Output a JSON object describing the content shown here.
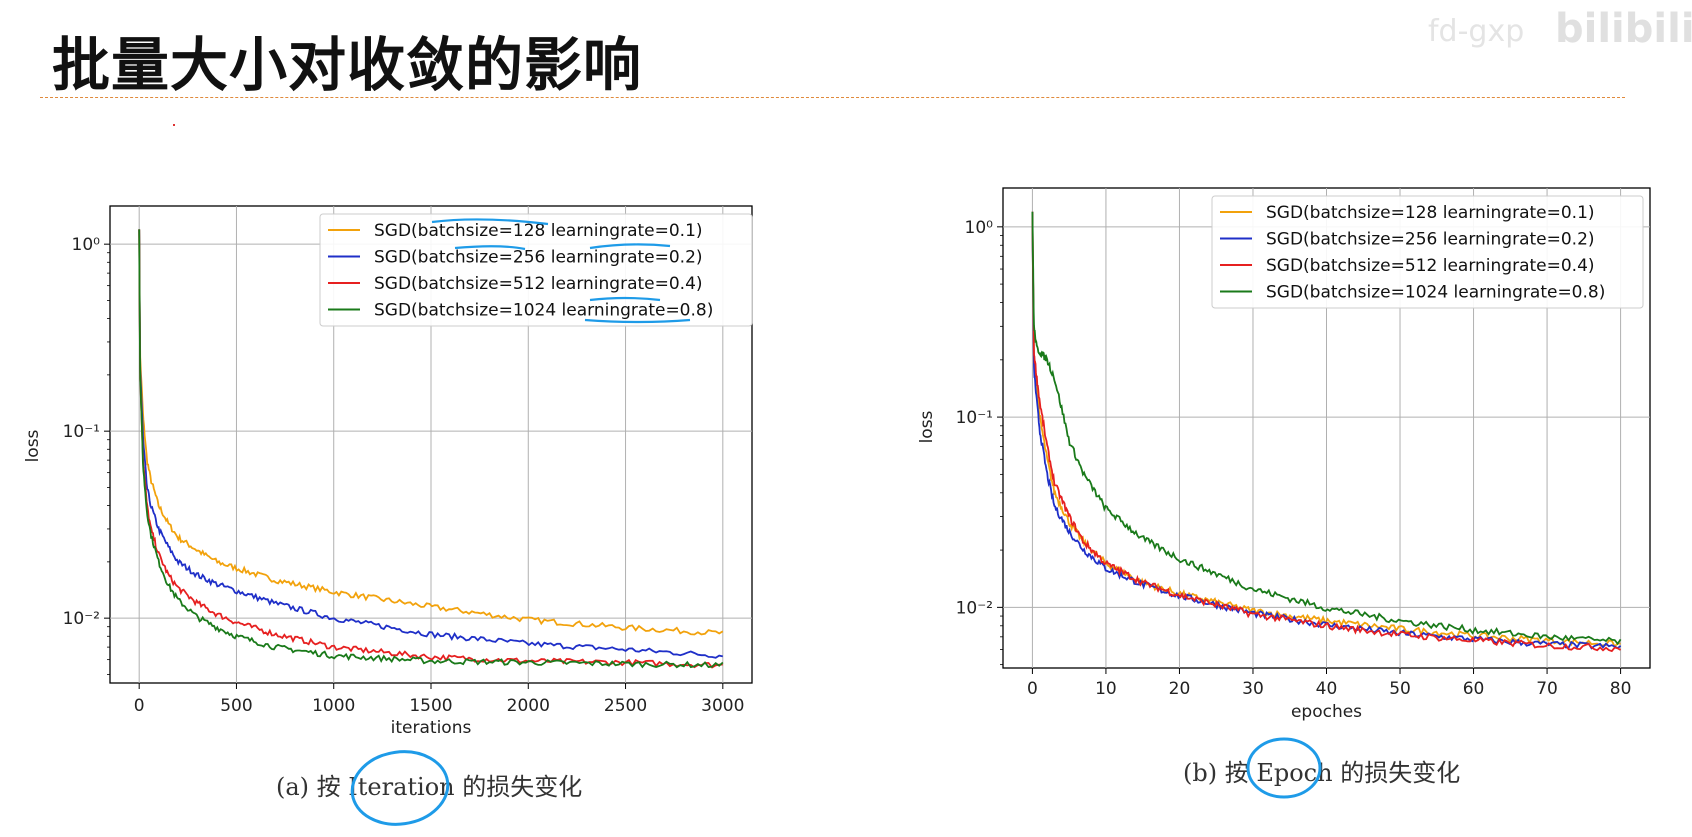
{
  "page": {
    "title": "批量大小对收敛的影响",
    "watermark": "fd-gxp",
    "watermark2": "bilibili"
  },
  "captions": {
    "a": "(a) 按 Iteration 的损失变化",
    "b": "(b) 按 Epoch 的损失变化"
  },
  "colors": {
    "accent_divider": "#e08a3c",
    "orange": "#f2a20c",
    "blue": "#1f2fc8",
    "red": "#e62020",
    "green": "#1a7a1a",
    "annotation": "#1e9be8"
  },
  "chart_data": [
    {
      "type": "line",
      "xlabel": "iterations",
      "ylabel": "loss",
      "yscale": "log",
      "xlim": [
        -150,
        3150
      ],
      "ylim": [
        0.0045,
        1.6
      ],
      "xticks": [
        0,
        500,
        1000,
        1500,
        2000,
        2500,
        3000
      ],
      "ytick_labels": [
        "10⁰",
        "10⁻¹",
        "10⁻²"
      ],
      "grid": true,
      "legend_position": "top-right",
      "series": [
        {
          "name": "SGD(batchsize=128 learningrate=0.1)",
          "color": "#f2a20c",
          "x": [
            0,
            5,
            20,
            40,
            60,
            100,
            150,
            200,
            300,
            400,
            500,
            700,
            1000,
            1500,
            2000,
            2500,
            3000
          ],
          "y": [
            1.2,
            0.25,
            0.12,
            0.07,
            0.055,
            0.04,
            0.032,
            0.027,
            0.023,
            0.02,
            0.0185,
            0.016,
            0.0138,
            0.0115,
            0.0098,
            0.0089,
            0.0083
          ]
        },
        {
          "name": "SGD(batchsize=256 learningrate=0.2)",
          "color": "#1f2fc8",
          "x": [
            0,
            5,
            20,
            40,
            60,
            100,
            150,
            200,
            300,
            400,
            500,
            700,
            1000,
            1500,
            2000,
            2500,
            3000
          ],
          "y": [
            1.2,
            0.22,
            0.09,
            0.05,
            0.04,
            0.03,
            0.024,
            0.02,
            0.017,
            0.0152,
            0.014,
            0.012,
            0.01,
            0.0082,
            0.0073,
            0.0068,
            0.0063
          ]
        },
        {
          "name": "SGD(batchsize=512 learningrate=0.4)",
          "color": "#e62020",
          "x": [
            0,
            5,
            20,
            40,
            60,
            100,
            150,
            200,
            300,
            400,
            500,
            700,
            1000,
            1500,
            2000,
            2500,
            3000
          ],
          "y": [
            1.2,
            0.2,
            0.07,
            0.04,
            0.03,
            0.022,
            0.017,
            0.0145,
            0.012,
            0.0105,
            0.0095,
            0.0082,
            0.007,
            0.0062,
            0.0059,
            0.0058,
            0.0056
          ]
        },
        {
          "name": "SGD(batchsize=1024 learningrate=0.8)",
          "color": "#1a7a1a",
          "x": [
            0,
            5,
            20,
            40,
            60,
            100,
            150,
            200,
            300,
            400,
            500,
            700,
            1000,
            1500,
            2000,
            2500,
            3000
          ],
          "y": [
            1.2,
            0.2,
            0.065,
            0.037,
            0.028,
            0.02,
            0.015,
            0.0125,
            0.0101,
            0.0089,
            0.008,
            0.007,
            0.0063,
            0.0059,
            0.0058,
            0.0057,
            0.0056
          ]
        }
      ]
    },
    {
      "type": "line",
      "xlabel": "epoches",
      "ylabel": "loss",
      "yscale": "log",
      "xlim": [
        -4,
        84
      ],
      "ylim": [
        0.0048,
        1.6
      ],
      "xticks": [
        0,
        10,
        20,
        30,
        40,
        50,
        60,
        70,
        80
      ],
      "ytick_labels": [
        "10⁰",
        "10⁻¹",
        "10⁻²"
      ],
      "grid": true,
      "legend_position": "top-right",
      "series": [
        {
          "name": "SGD(batchsize=128 learningrate=0.1)",
          "color": "#f2a20c",
          "x": [
            0,
            0.2,
            0.6,
            1,
            2,
            3,
            5,
            7,
            10,
            15,
            20,
            30,
            40,
            50,
            60,
            70,
            80
          ],
          "y": [
            1.2,
            0.2,
            0.14,
            0.1,
            0.06,
            0.04,
            0.028,
            0.022,
            0.017,
            0.0135,
            0.0118,
            0.0096,
            0.0085,
            0.0077,
            0.0071,
            0.0067,
            0.0064
          ]
        },
        {
          "name": "SGD(batchsize=256 learningrate=0.2)",
          "color": "#1f2fc8",
          "x": [
            0,
            0.2,
            0.6,
            1,
            2,
            3,
            5,
            7,
            10,
            15,
            20,
            30,
            40,
            50,
            60,
            70,
            80
          ],
          "y": [
            1.2,
            0.18,
            0.12,
            0.085,
            0.05,
            0.034,
            0.025,
            0.02,
            0.016,
            0.0132,
            0.0115,
            0.0093,
            0.0081,
            0.0073,
            0.0068,
            0.0064,
            0.0062
          ]
        },
        {
          "name": "SGD(batchsize=512 learningrate=0.4)",
          "color": "#e62020",
          "x": [
            0,
            0.2,
            0.6,
            1,
            2,
            3,
            5,
            7,
            10,
            15,
            20,
            30,
            40,
            50,
            60,
            70,
            80
          ],
          "y": [
            1.2,
            0.22,
            0.16,
            0.12,
            0.07,
            0.045,
            0.03,
            0.022,
            0.017,
            0.0135,
            0.0116,
            0.0092,
            0.008,
            0.0072,
            0.0067,
            0.0063,
            0.0061
          ]
        },
        {
          "name": "SGD(batchsize=1024 learningrate=0.8)",
          "color": "#1a7a1a",
          "x": [
            0,
            0.2,
            0.6,
            1,
            2,
            3,
            4,
            5,
            7,
            10,
            15,
            20,
            30,
            40,
            50,
            60,
            70,
            80
          ],
          "y": [
            1.2,
            0.3,
            0.23,
            0.22,
            0.2,
            0.16,
            0.11,
            0.075,
            0.05,
            0.033,
            0.023,
            0.018,
            0.0125,
            0.0099,
            0.0085,
            0.0076,
            0.007,
            0.0066
          ]
        }
      ]
    }
  ]
}
